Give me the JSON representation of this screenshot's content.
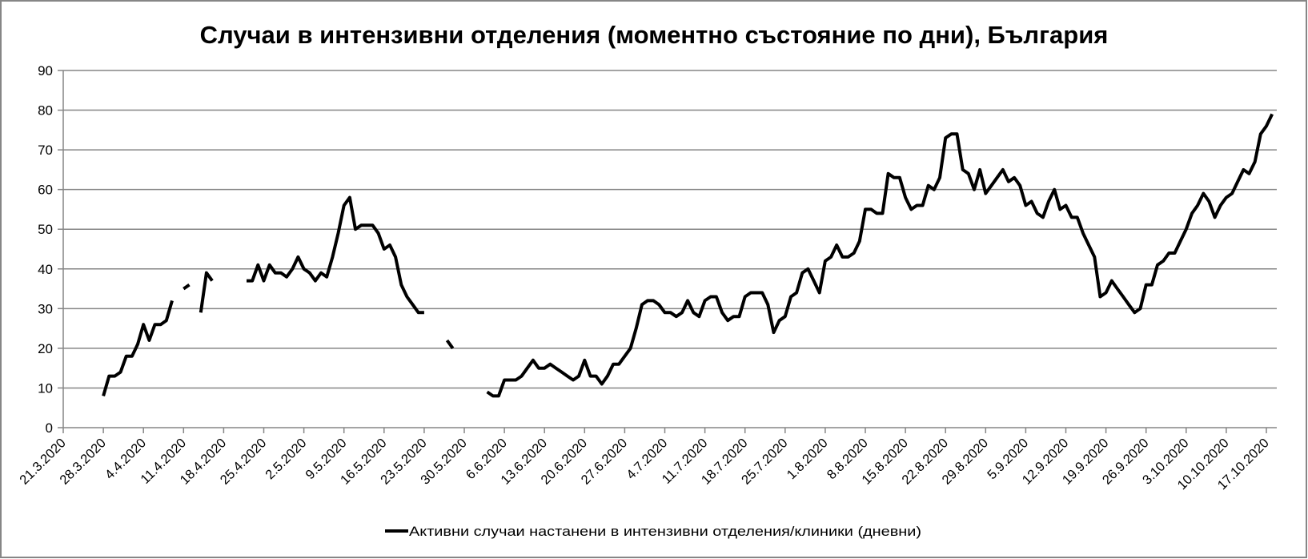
{
  "chart_data": {
    "type": "line",
    "title": "Случаи в интензивни отделения (моментно състояние по дни), България",
    "xlabel": "",
    "ylabel": "",
    "ylim": [
      0,
      90
    ],
    "yticks": [
      0,
      10,
      20,
      30,
      40,
      50,
      60,
      70,
      80,
      90
    ],
    "grid": true,
    "legend_position": "bottom",
    "x_tick_labels": [
      "21.3.2020",
      "28.3.2020",
      "4.4.2020",
      "11.4.2020",
      "18.4.2020",
      "25.4.2020",
      "2.5.2020",
      "9.5.2020",
      "16.5.2020",
      "23.5.2020",
      "30.5.2020",
      "6.6.2020",
      "13.6.2020",
      "20.6.2020",
      "27.6.2020",
      "4.7.2020",
      "11.7.2020",
      "18.7.2020",
      "25.7.2020",
      "1.8.2020",
      "8.8.2020",
      "15.8.2020",
      "22.8.2020",
      "29.8.2020",
      "5.9.2020",
      "12.9.2020",
      "19.9.2020",
      "26.9.2020",
      "3.10.2020",
      "10.10.2020",
      "17.10.2020"
    ],
    "x_frequency": "daily from first tick label",
    "series": [
      {
        "name": "Активни случаи настанени в интензивни отделения/клиники (дневни)",
        "color": "#000000",
        "values": [
          null,
          null,
          null,
          null,
          null,
          null,
          null,
          8,
          13,
          13,
          14,
          18,
          18,
          21,
          26,
          22,
          26,
          26,
          27,
          32,
          null,
          35,
          36,
          null,
          29,
          39,
          37,
          null,
          null,
          null,
          null,
          null,
          37,
          37,
          41,
          37,
          41,
          39,
          39,
          38,
          40,
          43,
          40,
          39,
          37,
          39,
          38,
          43,
          49,
          56,
          58,
          50,
          51,
          51,
          51,
          49,
          45,
          46,
          43,
          36,
          33,
          31,
          29,
          29,
          null,
          null,
          null,
          22,
          20,
          null,
          null,
          null,
          null,
          null,
          9,
          8,
          8,
          12,
          12,
          12,
          13,
          15,
          17,
          15,
          15,
          16,
          15,
          14,
          13,
          12,
          13,
          17,
          13,
          13,
          11,
          13,
          16,
          16,
          18,
          20,
          25,
          31,
          32,
          32,
          31,
          29,
          29,
          28,
          29,
          32,
          29,
          28,
          32,
          33,
          33,
          29,
          27,
          28,
          28,
          33,
          34,
          34,
          34,
          31,
          24,
          27,
          28,
          33,
          34,
          39,
          40,
          37,
          34,
          42,
          43,
          46,
          43,
          43,
          44,
          47,
          55,
          55,
          54,
          54,
          64,
          63,
          63,
          58,
          55,
          56,
          56,
          61,
          60,
          63,
          73,
          74,
          74,
          65,
          64,
          60,
          65,
          59,
          61,
          63,
          65,
          62,
          63,
          61,
          56,
          57,
          54,
          53,
          57,
          60,
          55,
          56,
          53,
          53,
          49,
          46,
          43,
          33,
          34,
          37,
          35,
          33,
          31,
          29,
          30,
          36,
          36,
          41,
          42,
          44,
          44,
          47,
          50,
          54,
          56,
          59,
          57,
          53,
          56,
          58,
          59,
          62,
          65,
          64,
          67,
          74,
          76,
          79
        ]
      }
    ]
  }
}
